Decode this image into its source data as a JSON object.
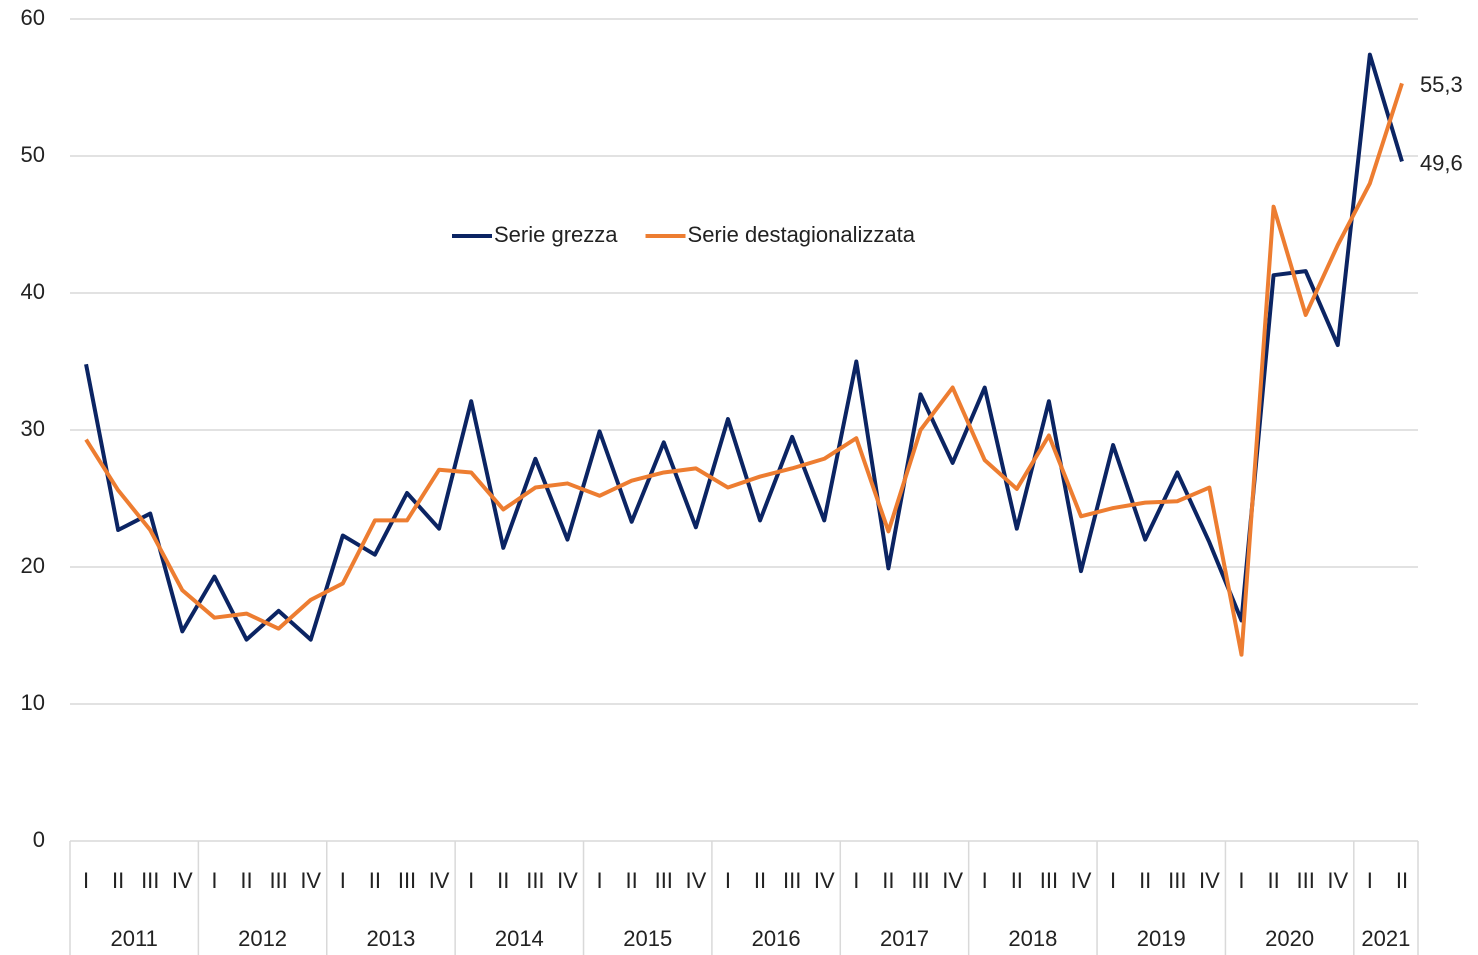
{
  "chart_data": {
    "type": "line",
    "categories": [
      "I",
      "II",
      "III",
      "IV",
      "I",
      "II",
      "III",
      "IV",
      "I",
      "II",
      "III",
      "IV",
      "I",
      "II",
      "III",
      "IV",
      "I",
      "II",
      "III",
      "IV",
      "I",
      "II",
      "III",
      "IV",
      "I",
      "II",
      "III",
      "IV",
      "I",
      "II",
      "III",
      "IV",
      "I",
      "II",
      "III",
      "IV",
      "I",
      "II",
      "III",
      "IV",
      "I",
      "II"
    ],
    "years": [
      "2011",
      "2012",
      "2013",
      "2014",
      "2015",
      "2016",
      "2017",
      "2018",
      "2019",
      "2020",
      "2021"
    ],
    "series": [
      {
        "name": "Serie grezza",
        "color": "#0b2463",
        "values": [
          34.8,
          22.7,
          23.9,
          15.3,
          19.3,
          14.7,
          16.8,
          14.7,
          22.3,
          20.9,
          25.4,
          22.8,
          32.1,
          21.4,
          27.9,
          22.0,
          29.9,
          23.3,
          29.1,
          22.9,
          30.8,
          23.4,
          29.5,
          23.4,
          35.0,
          19.9,
          32.6,
          27.6,
          33.1,
          22.8,
          32.1,
          19.7,
          28.9,
          22.0,
          26.9,
          21.8,
          16.1,
          41.3,
          41.6,
          36.2,
          57.4,
          49.6
        ],
        "value_labels": [
          null,
          null,
          null,
          null,
          null,
          null,
          null,
          null,
          null,
          null,
          null,
          null,
          null,
          null,
          null,
          null,
          null,
          null,
          null,
          null,
          null,
          null,
          null,
          null,
          null,
          null,
          null,
          null,
          null,
          null,
          null,
          null,
          null,
          null,
          null,
          null,
          null,
          null,
          null,
          null,
          null,
          "49,6"
        ]
      },
      {
        "name": "Serie destagionalizzata",
        "color": "#ed7d31",
        "values": [
          29.3,
          25.6,
          22.7,
          18.3,
          16.3,
          16.6,
          15.5,
          17.6,
          18.8,
          23.4,
          23.4,
          27.1,
          26.9,
          24.2,
          25.8,
          26.1,
          25.2,
          26.3,
          26.9,
          27.2,
          25.8,
          26.6,
          27.2,
          27.9,
          29.4,
          22.6,
          30.0,
          33.1,
          27.8,
          25.7,
          29.6,
          23.7,
          24.3,
          24.7,
          24.8,
          25.8,
          13.6,
          46.3,
          38.4,
          43.5,
          48.0,
          55.3
        ],
        "value_labels": [
          null,
          null,
          null,
          null,
          null,
          null,
          null,
          null,
          null,
          null,
          null,
          null,
          null,
          null,
          null,
          null,
          null,
          null,
          null,
          null,
          null,
          null,
          null,
          null,
          null,
          null,
          null,
          null,
          null,
          null,
          null,
          null,
          null,
          null,
          null,
          null,
          null,
          null,
          null,
          null,
          null,
          "55,3"
        ]
      }
    ],
    "ylim": [
      0,
      60
    ],
    "yticks": [
      0,
      10,
      20,
      30,
      40,
      50,
      60
    ],
    "grid": true,
    "legend": "upper center"
  }
}
